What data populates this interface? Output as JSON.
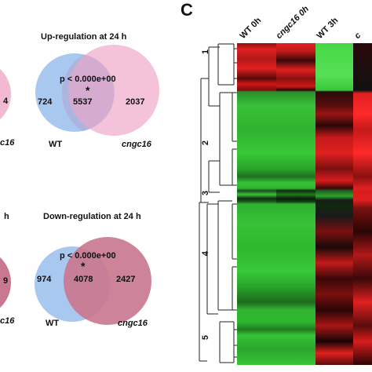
{
  "venns": [
    {
      "partial_left_value": "4",
      "title": "Up-regulation at 24 h",
      "pvalue": "p < 0.000e+00",
      "star": "*",
      "left_value": "724",
      "overlap_value": "5537",
      "right_value": "2037",
      "left_label": "WT",
      "right_label": "cngc16",
      "partial_caption": "c16"
    },
    {
      "partial_title": "h",
      "partial_left_value": "9",
      "title": "Down-regulation at 24 h",
      "pvalue": "p < 0.000e+00",
      "star": "*",
      "left_value": "974",
      "overlap_value": "4078",
      "right_value": "2427",
      "left_label": "WT",
      "right_label": "cngc16",
      "partial_caption": "c16"
    }
  ],
  "heatmap": {
    "panel_letter": "C",
    "columns": [
      "WT 0h",
      "cngc16 0h",
      "WT 3h",
      "c"
    ],
    "clusters": [
      "1",
      "2",
      "3",
      "4",
      "5"
    ]
  },
  "colors": {
    "venn_blue": "#a9c8ef",
    "venn_pink_up": "#f2b9d2",
    "venn_pink_down": "#c9788f",
    "overlap_up": "#b592c2",
    "overlap_down": "#6e4c9c",
    "heat_red": "#e02020",
    "heat_green": "#2db82d",
    "heat_black": "#111111"
  }
}
